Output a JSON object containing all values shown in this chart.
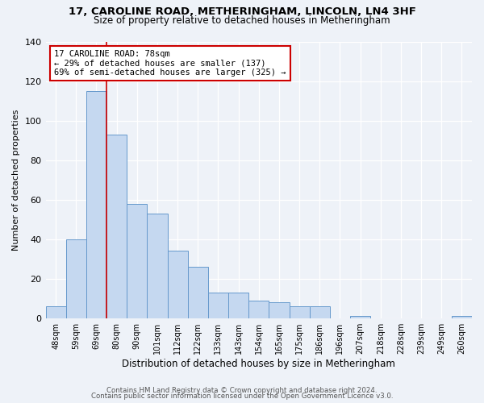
{
  "title": "17, CAROLINE ROAD, METHERINGHAM, LINCOLN, LN4 3HF",
  "subtitle": "Size of property relative to detached houses in Metheringham",
  "xlabel": "Distribution of detached houses by size in Metheringham",
  "ylabel": "Number of detached properties",
  "bar_labels": [
    "48sqm",
    "59sqm",
    "69sqm",
    "80sqm",
    "90sqm",
    "101sqm",
    "112sqm",
    "122sqm",
    "133sqm",
    "143sqm",
    "154sqm",
    "165sqm",
    "175sqm",
    "186sqm",
    "196sqm",
    "207sqm",
    "218sqm",
    "228sqm",
    "239sqm",
    "249sqm",
    "260sqm"
  ],
  "bar_values": [
    6,
    40,
    115,
    93,
    58,
    53,
    34,
    26,
    13,
    13,
    9,
    8,
    6,
    6,
    0,
    1,
    0,
    0,
    0,
    0,
    1
  ],
  "bar_color": "#c5d8f0",
  "bar_edge_color": "#6699cc",
  "ylim": [
    0,
    140
  ],
  "yticks": [
    0,
    20,
    40,
    60,
    80,
    100,
    120,
    140
  ],
  "property_line_color": "#cc0000",
  "annotation_title": "17 CAROLINE ROAD: 78sqm",
  "annotation_line1": "← 29% of detached houses are smaller (137)",
  "annotation_line2": "69% of semi-detached houses are larger (325) →",
  "annotation_box_color": "#cc0000",
  "background_color": "#eef2f8",
  "grid_color": "#ffffff",
  "footer1": "Contains HM Land Registry data © Crown copyright and database right 2024.",
  "footer2": "Contains public sector information licensed under the Open Government Licence v3.0."
}
